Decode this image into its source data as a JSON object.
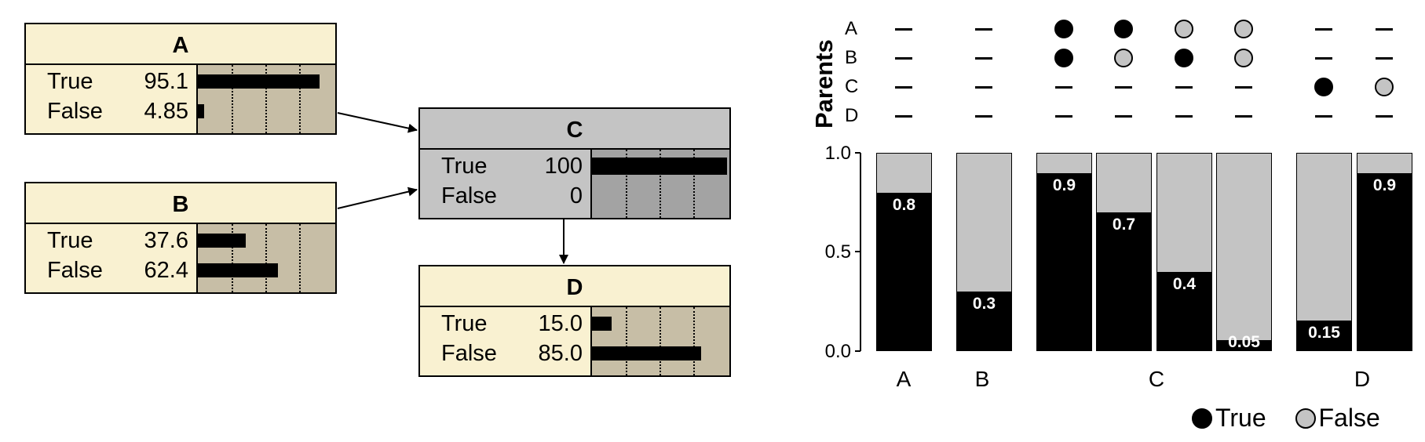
{
  "nodes": {
    "A": {
      "title": "A",
      "states": [
        {
          "label": "True",
          "value": "95.1",
          "pct": 95.1
        },
        {
          "label": "False",
          "value": "4.85",
          "pct": 4.85
        }
      ]
    },
    "B": {
      "title": "B",
      "states": [
        {
          "label": "True",
          "value": "37.6",
          "pct": 37.6
        },
        {
          "label": "False",
          "value": "62.4",
          "pct": 62.4
        }
      ]
    },
    "C": {
      "title": "C",
      "states": [
        {
          "label": "True",
          "value": "100",
          "pct": 100
        },
        {
          "label": "False",
          "value": "0",
          "pct": 0
        }
      ]
    },
    "D": {
      "title": "D",
      "states": [
        {
          "label": "True",
          "value": "15.0",
          "pct": 15.0
        },
        {
          "label": "False",
          "value": "85.0",
          "pct": 85.0
        }
      ]
    }
  },
  "edges": [
    [
      "A",
      "C"
    ],
    [
      "B",
      "C"
    ],
    [
      "C",
      "D"
    ]
  ],
  "chart_data": {
    "type": "bar",
    "stacked": true,
    "ylim": [
      0,
      1
    ],
    "yticks": [
      "0.0",
      "0.5",
      "1.0"
    ],
    "parents_title": "Parents",
    "parent_rows": [
      "A",
      "B",
      "C",
      "D"
    ],
    "bars": [
      {
        "group": "A",
        "parents": {
          "A": "-",
          "B": "-",
          "C": "-",
          "D": "-"
        },
        "true": 0.8,
        "label": "0.8"
      },
      {
        "group": "B",
        "parents": {
          "A": "-",
          "B": "-",
          "C": "-",
          "D": "-"
        },
        "true": 0.3,
        "label": "0.3"
      },
      {
        "group": "C",
        "parents": {
          "A": "T",
          "B": "T",
          "C": "-",
          "D": "-"
        },
        "true": 0.9,
        "label": "0.9"
      },
      {
        "group": "C",
        "parents": {
          "A": "T",
          "B": "F",
          "C": "-",
          "D": "-"
        },
        "true": 0.7,
        "label": "0.7"
      },
      {
        "group": "C",
        "parents": {
          "A": "F",
          "B": "T",
          "C": "-",
          "D": "-"
        },
        "true": 0.4,
        "label": "0.4"
      },
      {
        "group": "C",
        "parents": {
          "A": "F",
          "B": "F",
          "C": "-",
          "D": "-"
        },
        "true": 0.05,
        "label": "0.05"
      },
      {
        "group": "D",
        "parents": {
          "A": "-",
          "B": "-",
          "C": "T",
          "D": "-"
        },
        "true": 0.15,
        "label": "0.15"
      },
      {
        "group": "D",
        "parents": {
          "A": "-",
          "B": "-",
          "C": "F",
          "D": "-"
        },
        "true": 0.9,
        "label": "0.9"
      }
    ],
    "group_labels": [
      "A",
      "B",
      "C",
      "D"
    ],
    "legend": [
      {
        "label": "True",
        "color": "#000000"
      },
      {
        "label": "False",
        "color": "#c4c4c4"
      }
    ]
  }
}
